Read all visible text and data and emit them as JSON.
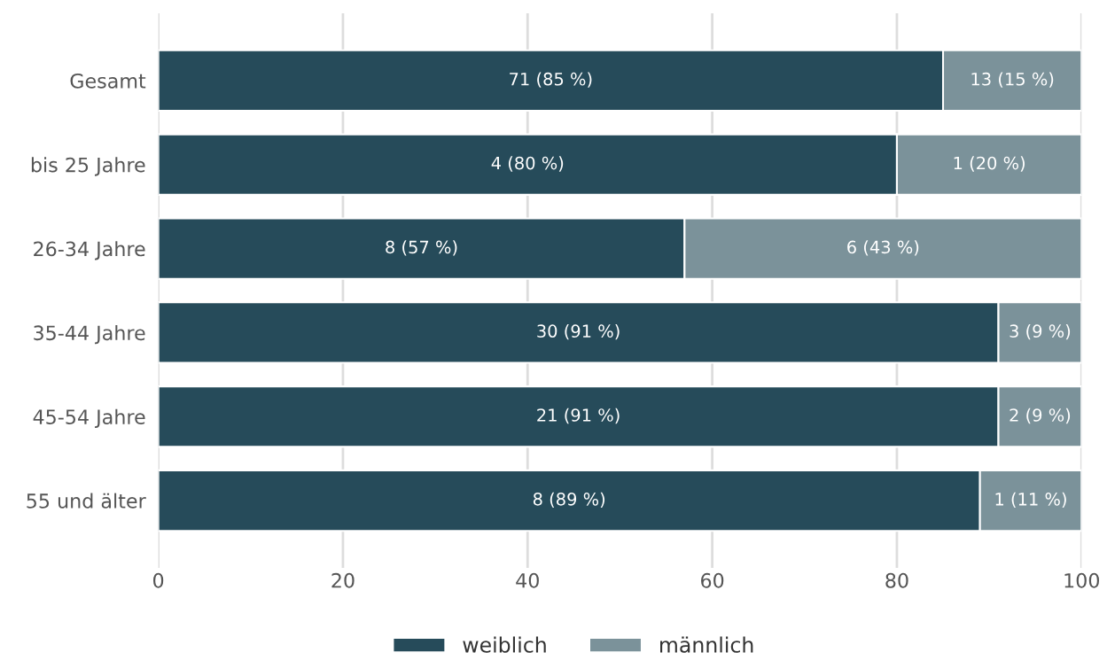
{
  "chart_data": {
    "type": "bar",
    "orientation": "horizontal",
    "stacked": true,
    "categories": [
      "Gesamt",
      "bis 25 Jahre",
      "26-34 Jahre",
      "35-44 Jahre",
      "45-54 Jahre",
      "55 und älter"
    ],
    "series": [
      {
        "name": "weiblich",
        "color": "#264b5a",
        "values": [
          85,
          80,
          57,
          91,
          91,
          89
        ],
        "value_labels": [
          "71 (85 %)",
          "4 (80 %)",
          "8 (57 %)",
          "30 (91 %)",
          "21 (91 %)",
          "8 (89 %)"
        ]
      },
      {
        "name": "männlich",
        "color": "#7b929a",
        "values": [
          15,
          20,
          43,
          9,
          9,
          11
        ],
        "value_labels": [
          "13 (15 %)",
          "1 (20 %)",
          "6 (43 %)",
          "3 (9 %)",
          "2 (9 %)",
          "1 (11 %)"
        ]
      }
    ],
    "xlim": [
      0,
      100
    ],
    "xticks": [
      0,
      20,
      40,
      60,
      80,
      100
    ],
    "grid": "x",
    "legend": "bottom"
  }
}
